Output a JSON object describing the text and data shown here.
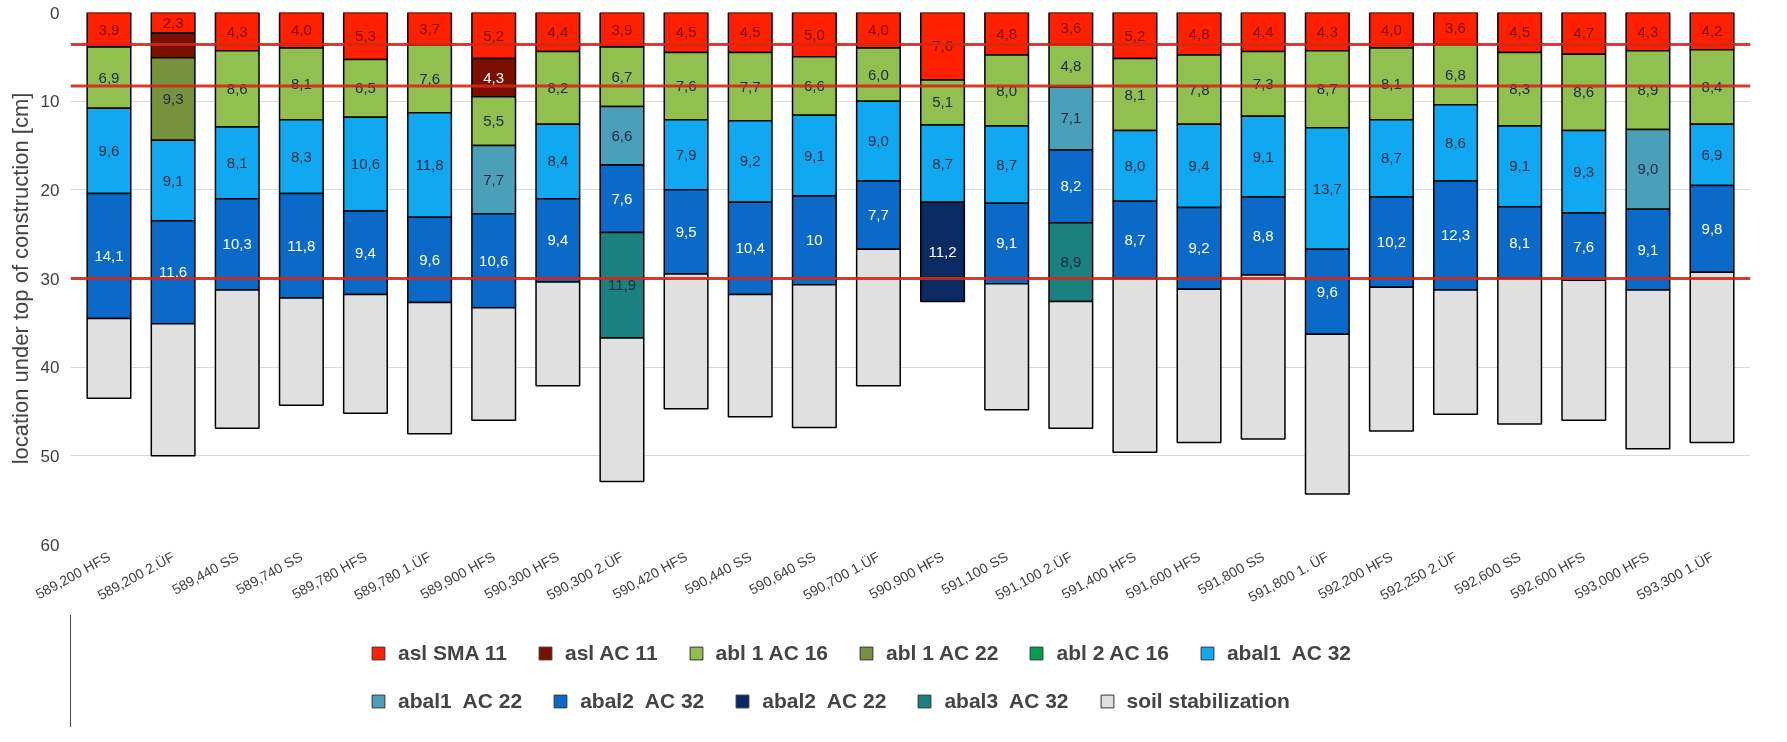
{
  "chart_data": {
    "type": "bar",
    "stacked": true,
    "ylabel": "location under top of construction [cm]",
    "categories": [
      "589,200 HFS",
      "589,200 2.ÜF",
      "589,440 SS",
      "589,740 SS",
      "589,780 HFS",
      "589,780 1.ÜF",
      "589,900 HFS",
      "590,300 HFS",
      "590,300 2.ÜF",
      "590,420 HFS",
      "590,440 SS",
      "590,640 SS",
      "590,700 1.ÜF",
      "590,900 HFS",
      "591,100 SS",
      "591,100 2.ÜF",
      "591,400 HFS",
      "591,600 HFS",
      "591,800 SS",
      "591,800 1. ÜF",
      "592,200 HFS",
      "592,250 2.ÜF",
      "592,600 SS",
      "592,600 HFS",
      "593,000 HFS",
      "593,300 1.ÜF"
    ],
    "ylim": [
      60,
      0
    ],
    "yticks": [
      0,
      10,
      20,
      30,
      40,
      50,
      60
    ],
    "grid": "y",
    "legend": "bottom",
    "series": [
      {
        "name": "asl SMA 11",
        "color": "#ff2000",
        "values": [
          3.9,
          2.3,
          4.3,
          4.0,
          5.3,
          3.7,
          5.2,
          4.4,
          3.9,
          4.5,
          4.5,
          5.0,
          4.0,
          7.6,
          4.8,
          3.6,
          5.2,
          4.8,
          4.4,
          4.3,
          4.0,
          3.6,
          4.5,
          4.7,
          4.3,
          4.2
        ],
        "value_labels": [
          "3,9",
          "2,3",
          "4,3",
          "4,0",
          "5,3",
          "3,7",
          "5,2",
          "4,4",
          "3,9",
          "4,5",
          "4,5",
          "5,0",
          "4,0",
          "7,6",
          "4,8",
          "3,6",
          "5,2",
          "4,8",
          "4,4",
          "4,3",
          "4,0",
          "3,6",
          "4,5",
          "4,7",
          "4,3",
          "4,2"
        ]
      },
      {
        "name": "asl AC 11",
        "color": "#7a1000",
        "values": [
          null,
          2.8,
          null,
          null,
          null,
          null,
          4.3,
          null,
          null,
          null,
          null,
          null,
          null,
          null,
          null,
          null,
          null,
          null,
          null,
          null,
          null,
          null,
          null,
          null,
          null,
          null
        ],
        "value_labels": [
          null,
          null,
          null,
          null,
          null,
          null,
          "4,3",
          null,
          null,
          null,
          null,
          null,
          null,
          null,
          null,
          null,
          null,
          null,
          null,
          null,
          null,
          null,
          null,
          null,
          null,
          null
        ]
      },
      {
        "name": "abl 1 AC 16",
        "color": "#92c050",
        "values": [
          6.9,
          null,
          8.6,
          8.1,
          6.5,
          7.6,
          5.5,
          8.2,
          6.7,
          7.6,
          7.7,
          6.6,
          6.0,
          5.1,
          8.0,
          4.8,
          8.1,
          7.8,
          7.3,
          8.7,
          8.1,
          6.8,
          8.3,
          8.6,
          8.9,
          8.4
        ],
        "value_labels": [
          "6,9",
          null,
          "8,6",
          "8,1",
          "6,5",
          "7,6",
          "5,5",
          "8,2",
          "6,7",
          "7,6",
          "7,7",
          "6,6",
          "6,0",
          "5,1",
          "8,0",
          "4,8",
          "8,1",
          "7,8",
          "7,3",
          "8,7",
          "8,1",
          "6,8",
          "8,3",
          "8,6",
          "8,9",
          "8,4"
        ]
      },
      {
        "name": "abl 1 AC 22",
        "color": "#76923c",
        "values": [
          null,
          9.3,
          null,
          null,
          null,
          null,
          null,
          null,
          null,
          null,
          null,
          null,
          null,
          null,
          null,
          null,
          null,
          null,
          null,
          null,
          null,
          null,
          null,
          null,
          null,
          null
        ],
        "value_labels": [
          null,
          "9,3",
          null,
          null,
          null,
          null,
          null,
          null,
          null,
          null,
          null,
          null,
          null,
          null,
          null,
          null,
          null,
          null,
          null,
          null,
          null,
          null,
          null,
          null,
          null,
          null
        ]
      },
      {
        "name": "abl 2 AC 16",
        "color": "#00a050",
        "values": [
          null,
          null,
          null,
          null,
          null,
          null,
          null,
          null,
          null,
          null,
          null,
          null,
          null,
          null,
          null,
          null,
          null,
          null,
          null,
          null,
          null,
          null,
          null,
          null,
          null,
          null
        ]
      },
      {
        "name": "abal1  AC 32",
        "color": "#10a8f0",
        "values": [
          9.6,
          9.1,
          8.1,
          8.3,
          10.6,
          11.8,
          null,
          8.4,
          null,
          7.9,
          9.2,
          9.1,
          9.0,
          8.7,
          8.7,
          null,
          8.0,
          9.4,
          9.1,
          13.7,
          8.7,
          8.6,
          9.1,
          9.3,
          null,
          6.9
        ],
        "value_labels": [
          "9,6",
          "9,1",
          "8,1",
          "8,3",
          "10,6",
          "11,8",
          null,
          "8,4",
          null,
          "7,9",
          "9,2",
          "9,1",
          "9,0",
          "8,7",
          "8,7",
          null,
          "8,0",
          "9,4",
          "9,1",
          "13,7",
          "8,7",
          "8,6",
          "9,1",
          "9,3",
          null,
          "6,9"
        ]
      },
      {
        "name": "abal1  AC 22",
        "color": "#4aa0b8",
        "values": [
          null,
          null,
          null,
          null,
          null,
          null,
          7.7,
          null,
          6.6,
          null,
          null,
          null,
          null,
          null,
          null,
          7.1,
          null,
          null,
          null,
          null,
          null,
          null,
          null,
          null,
          9.0,
          null
        ],
        "value_labels": [
          null,
          null,
          null,
          null,
          null,
          null,
          "7,7",
          null,
          "6,6",
          null,
          null,
          null,
          null,
          null,
          null,
          "7,1",
          null,
          null,
          null,
          null,
          null,
          null,
          null,
          null,
          "9,0",
          null
        ]
      },
      {
        "name": "abal2  AC 32",
        "color": "#0b6ac8",
        "values": [
          14.1,
          11.6,
          10.3,
          11.8,
          9.4,
          9.6,
          10.6,
          9.4,
          7.6,
          9.5,
          10.4,
          10,
          7.7,
          null,
          9.1,
          8.2,
          8.7,
          9.2,
          8.8,
          9.6,
          10.2,
          12.3,
          8.1,
          7.6,
          9.1,
          9.8
        ],
        "value_labels": [
          "14,1",
          "11,6",
          "10,3",
          "11,8",
          "9,4",
          "9,6",
          "10,6",
          "9,4",
          "7,6",
          "9,5",
          "10,4",
          "10",
          "7,7",
          null,
          "9,1",
          "8,2",
          "8,7",
          "9,2",
          "8,8",
          "9,6",
          "10,2",
          "12,3",
          "8,1",
          "7,6",
          "9,1",
          "9,8"
        ]
      },
      {
        "name": "abal2  AC 22",
        "color": "#0a2a62",
        "values": [
          null,
          null,
          null,
          null,
          null,
          null,
          null,
          null,
          null,
          null,
          null,
          null,
          null,
          11.2,
          null,
          null,
          null,
          null,
          null,
          null,
          null,
          null,
          null,
          null,
          null,
          null
        ],
        "value_labels": [
          null,
          null,
          null,
          null,
          null,
          null,
          null,
          null,
          null,
          null,
          null,
          null,
          null,
          "11,2",
          null,
          null,
          null,
          null,
          null,
          null,
          null,
          null,
          null,
          null,
          null,
          null
        ]
      },
      {
        "name": "abal3  AC 32",
        "color": "#1a8080",
        "values": [
          null,
          null,
          null,
          null,
          null,
          null,
          null,
          null,
          11.9,
          null,
          null,
          null,
          null,
          null,
          null,
          8.9,
          null,
          null,
          null,
          null,
          null,
          null,
          null,
          null,
          null,
          null
        ],
        "value_labels": [
          null,
          null,
          null,
          null,
          null,
          null,
          null,
          null,
          "11,9",
          null,
          null,
          null,
          null,
          null,
          null,
          "8,9",
          null,
          null,
          null,
          null,
          null,
          null,
          null,
          null,
          null,
          null
        ]
      },
      {
        "name": "soil stabilization",
        "color": "#e0e0e0",
        "values": [
          9.0,
          14.9,
          15.6,
          12.1,
          13.4,
          14.8,
          12.7,
          11.7,
          16.2,
          15.2,
          13.8,
          16.1,
          15.4,
          null,
          14.2,
          14.3,
          19.6,
          17.3,
          18.5,
          18.0,
          16.2,
          14.0,
          16.4,
          15.8,
          17.9,
          19.2
        ]
      }
    ],
    "ref_lines": [
      {
        "axis": "y",
        "value": 3.6,
        "color": "#d02818"
      },
      {
        "axis": "y",
        "value": 8.3,
        "color": "#d02818"
      },
      {
        "axis": "y",
        "value": 30,
        "color": "#d02818"
      }
    ]
  }
}
